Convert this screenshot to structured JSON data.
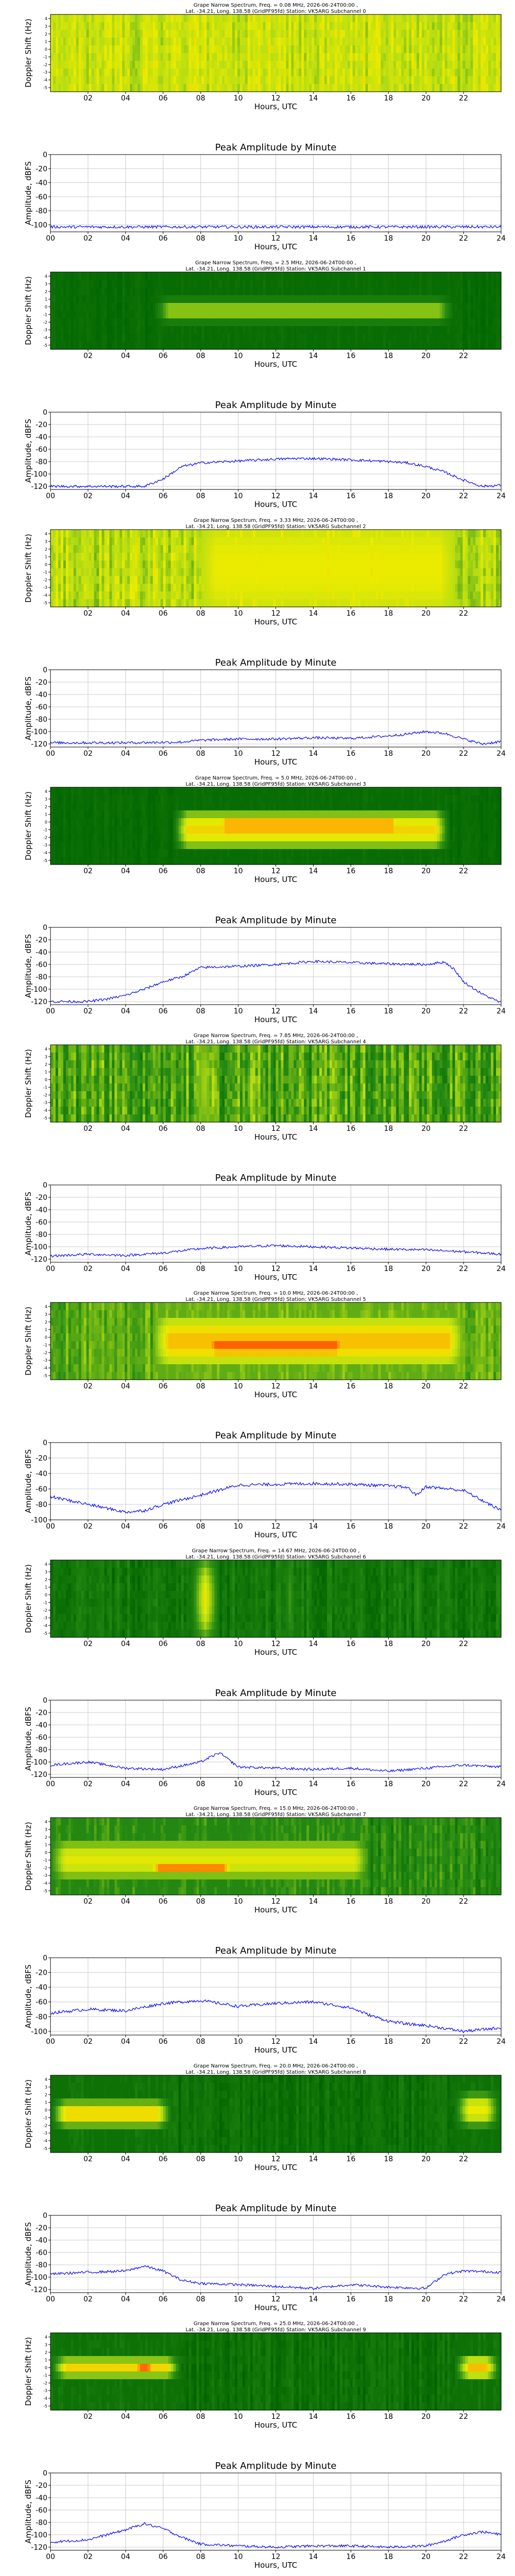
{
  "figure": {
    "spectrogram_ylabel": "Doppler Shift (Hz)",
    "amplitude_ylabel": "Amplitude, dBFS",
    "xlabel": "Hours, UTC",
    "amplitude_title": "Peak Amplitude by Minute",
    "spectrogram_xticks": [
      "02",
      "04",
      "06",
      "08",
      "10",
      "12",
      "14",
      "16",
      "18",
      "20",
      "22"
    ],
    "amplitude_xticks": [
      "00",
      "02",
      "04",
      "06",
      "08",
      "10",
      "12",
      "14",
      "16",
      "18",
      "20",
      "22",
      "24"
    ],
    "doppler_ticks": [
      "4",
      "3",
      "2",
      "1",
      "0",
      "-1",
      "-2",
      "-3",
      "-4",
      "-5"
    ],
    "colors": {
      "amplitude_line": "#0000ff",
      "low": "#006400",
      "mid": "#c8e600",
      "high": "#ff4000"
    }
  },
  "panels": [
    {
      "title_line1": "Grape Narrow Spectrum, Freq. = 0.08 MHz, 2026-06-24T00:00 ,",
      "title_line2": "Lat. -34.21, Long. 138.58 (GridPF95fd) Station: VK5ARG Subchannel 0",
      "amp_yticks": [
        "0",
        "-20",
        "-40",
        "-60",
        "-80",
        "-100"
      ],
      "spectrogram": {
        "base": 0.55,
        "noise": 0.18,
        "blobs": []
      },
      "chart_data": {
        "type": "line",
        "x_hours": [
          0,
          24
        ],
        "ylim": [
          -110,
          0
        ],
        "x": [
          0,
          4,
          8,
          12,
          16,
          20,
          24
        ],
        "y": [
          -103,
          -103,
          -103,
          -103,
          -103,
          -103,
          -103
        ]
      }
    },
    {
      "title_line1": "Grape Narrow Spectrum, Freq. = 2.5 MHz, 2026-06-24T00:00 ,",
      "title_line2": "Lat. -34.21, Long. 138.58 (GridPF95fd) Station: VK5ARG Subchannel 1",
      "amp_yticks": [
        "0",
        "-20",
        "-40",
        "-60",
        "-80",
        "-100",
        "-120"
      ],
      "spectrogram": {
        "base": 0.05,
        "noise": 0.06,
        "blobs": [
          {
            "x0": 5.5,
            "x1": 21.5,
            "y": 0.5,
            "h": 0.35,
            "v": 0.45
          },
          {
            "x0": 9.0,
            "x1": 17.5,
            "y": 0.5,
            "h": 0.1,
            "v": 0.85
          }
        ]
      },
      "chart_data": {
        "type": "line",
        "x_hours": [
          0,
          24
        ],
        "ylim": [
          -125,
          0
        ],
        "x": [
          0,
          5,
          6,
          7,
          8,
          10,
          12,
          13,
          14,
          16,
          18,
          19,
          20,
          21,
          22,
          23,
          24
        ],
        "y": [
          -120,
          -120,
          -108,
          -88,
          -82,
          -79,
          -76,
          -75,
          -75,
          -77,
          -80,
          -82,
          -88,
          -97,
          -110,
          -120,
          -118
        ]
      }
    },
    {
      "title_line1": "Grape Narrow Spectrum, Freq. = 3.33 MHz, 2026-06-24T00:00 ,",
      "title_line2": "Lat. -34.21, Long. 138.58 (GridPF95fd) Station: VK5ARG Subchannel 2",
      "amp_yticks": [
        "0",
        "-20",
        "-40",
        "-60",
        "-80",
        "-100",
        "-120"
      ],
      "spectrogram": {
        "base": 0.52,
        "noise": 0.2,
        "blobs": [
          {
            "x0": 8.0,
            "x1": 21.5,
            "y": 0.5,
            "h": 1.2,
            "v": 0.65
          },
          {
            "x0": 20.4,
            "x1": 21.2,
            "y": 0.5,
            "h": 1.2,
            "v": 0.8
          }
        ]
      },
      "chart_data": {
        "type": "line",
        "x_hours": [
          0,
          24
        ],
        "ylim": [
          -125,
          0
        ],
        "x": [
          0,
          4,
          7,
          8,
          10,
          12,
          14,
          16,
          18,
          19,
          20,
          21,
          22,
          23,
          24
        ],
        "y": [
          -118,
          -118,
          -117,
          -114,
          -112,
          -112,
          -110,
          -111,
          -107,
          -104,
          -100,
          -103,
          -112,
          -120,
          -116
        ]
      }
    },
    {
      "title_line1": "Grape Narrow Spectrum, Freq. = 5.0 MHz, 2026-06-24T00:00 ,",
      "title_line2": "Lat. -34.21, Long. 138.58 (GridPF95fd) Station: VK5ARG Subchannel 3",
      "amp_yticks": [
        "0",
        "-20",
        "-40",
        "-60",
        "-80",
        "-100",
        "-120"
      ],
      "spectrogram": {
        "base": 0.05,
        "noise": 0.06,
        "blobs": [
          {
            "x0": 6.5,
            "x1": 21.3,
            "y": 0.55,
            "h": 0.6,
            "v": 0.7
          },
          {
            "x0": 8.5,
            "x1": 19.0,
            "y": 0.5,
            "h": 0.25,
            "v": 0.9
          }
        ]
      },
      "chart_data": {
        "type": "line",
        "x_hours": [
          0,
          24
        ],
        "ylim": [
          -125,
          0
        ],
        "x": [
          0,
          2,
          3,
          4,
          5,
          6,
          7,
          8,
          10,
          12,
          14,
          16,
          18,
          20,
          21,
          21.5,
          22,
          23,
          24
        ],
        "y": [
          -120,
          -120,
          -116,
          -110,
          -100,
          -88,
          -80,
          -65,
          -63,
          -60,
          -55,
          -57,
          -59,
          -60,
          -56,
          -68,
          -88,
          -108,
          -122
        ]
      }
    },
    {
      "title_line1": "Grape Narrow Spectrum, Freq. = 7.85 MHz, 2026-06-24T00:00 ,",
      "title_line2": "Lat. -34.21, Long. 138.58 (GridPF95fd) Station: VK5ARG Subchannel 4",
      "amp_yticks": [
        "0",
        "-20",
        "-40",
        "-60",
        "-80",
        "-100",
        "-120"
      ],
      "spectrogram": {
        "base": 0.32,
        "noise": 0.28,
        "blobs": [
          {
            "x0": 7.8,
            "x1": 8.6,
            "y": 0.5,
            "h": 1.2,
            "v": 0.65
          }
        ]
      },
      "chart_data": {
        "type": "line",
        "x_hours": [
          0,
          24
        ],
        "ylim": [
          -125,
          0
        ],
        "x": [
          0,
          2,
          4,
          6,
          8,
          10,
          12,
          14,
          16,
          18,
          20,
          22,
          24
        ],
        "y": [
          -115,
          -112,
          -114,
          -110,
          -103,
          -100,
          -98,
          -100,
          -102,
          -104,
          -105,
          -108,
          -112
        ]
      }
    },
    {
      "title_line1": "Grape Narrow Spectrum, Freq. = 10.0 MHz, 2026-06-24T00:00 ,",
      "title_line2": "Lat. -34.21, Long. 138.58 (GridPF95fd) Station: VK5ARG Subchannel 5",
      "amp_yticks": [
        "0",
        "-20",
        "-40",
        "-60",
        "-80",
        "-100"
      ],
      "spectrogram": {
        "base": 0.35,
        "noise": 0.15,
        "blobs": [
          {
            "x0": 5.5,
            "x1": 22.0,
            "y": 0.5,
            "h": 0.7,
            "v": 0.75
          },
          {
            "x0": 8.0,
            "x1": 16.0,
            "y": 0.55,
            "h": 0.35,
            "v": 0.92
          }
        ]
      },
      "chart_data": {
        "type": "line",
        "x_hours": [
          0,
          24
        ],
        "ylim": [
          -100,
          0
        ],
        "x": [
          0,
          2,
          4,
          5,
          6,
          8,
          10,
          12,
          14,
          16,
          18,
          19,
          19.5,
          20,
          22,
          23,
          24
        ],
        "y": [
          -70,
          -80,
          -90,
          -88,
          -80,
          -68,
          -55,
          -54,
          -53,
          -54,
          -56,
          -58,
          -68,
          -57,
          -62,
          -75,
          -88
        ]
      }
    },
    {
      "title_line1": "Grape Narrow Spectrum, Freq. = 14.67 MHz, 2026-06-24T00:00 ,",
      "title_line2": "Lat. -34.21, Long. 138.58 (GridPF95fd) Station: VK5ARG Subchannel 6",
      "amp_yticks": [
        "0",
        "-20",
        "-40",
        "-60",
        "-80",
        "-100",
        "-120"
      ],
      "spectrogram": {
        "base": 0.12,
        "noise": 0.16,
        "blobs": [
          {
            "x0": 7.5,
            "x1": 9.0,
            "y": 0.5,
            "h": 1.2,
            "v": 0.7
          },
          {
            "x0": 12.5,
            "x1": 13.0,
            "y": 0.5,
            "h": 1.2,
            "v": 0.65
          },
          {
            "x0": 19.3,
            "x1": 19.8,
            "y": 0.5,
            "h": 1.2,
            "v": 0.6
          }
        ]
      },
      "chart_data": {
        "type": "line",
        "x_hours": [
          0,
          24
        ],
        "ylim": [
          -125,
          0
        ],
        "x": [
          0,
          2,
          4,
          6,
          8,
          9,
          10,
          12,
          14,
          16,
          18,
          20,
          22,
          24
        ],
        "y": [
          -105,
          -100,
          -110,
          -112,
          -100,
          -85,
          -108,
          -110,
          -112,
          -110,
          -115,
          -110,
          -105,
          -108
        ]
      }
    },
    {
      "title_line1": "Grape Narrow Spectrum, Freq. = 15.0 MHz, 2026-06-24T00:00 ,",
      "title_line2": "Lat. -34.21, Long. 138.58 (GridPF95fd) Station: VK5ARG Subchannel 7",
      "amp_yticks": [
        "0",
        "-20",
        "-40",
        "-60",
        "-80",
        "-100"
      ],
      "spectrogram": {
        "base": 0.22,
        "noise": 0.18,
        "blobs": [
          {
            "x0": 0.0,
            "x1": 17.0,
            "y": 0.55,
            "h": 0.55,
            "v": 0.62
          },
          {
            "x0": 5.0,
            "x1": 10.0,
            "y": 0.65,
            "h": 0.2,
            "v": 0.85
          }
        ]
      },
      "chart_data": {
        "type": "line",
        "x_hours": [
          0,
          24
        ],
        "ylim": [
          -105,
          0
        ],
        "x": [
          0,
          2,
          4,
          6,
          8,
          10,
          12,
          14,
          16,
          17,
          18,
          19,
          20,
          22,
          24
        ],
        "y": [
          -75,
          -70,
          -72,
          -62,
          -58,
          -66,
          -62,
          -60,
          -68,
          -78,
          -86,
          -90,
          -92,
          -100,
          -95
        ]
      }
    },
    {
      "title_line1": "Grape Narrow Spectrum, Freq. = 20.0 MHz, 2026-06-24T00:00 ,",
      "title_line2": "Lat. -34.21, Long. 138.58 (GridPF95fd) Station: VK5ARG Subchannel 8",
      "amp_yticks": [
        "0",
        "-20",
        "-40",
        "-60",
        "-80",
        "-100",
        "-120"
      ],
      "spectrogram": {
        "base": 0.08,
        "noise": 0.12,
        "blobs": [
          {
            "x0": 0.0,
            "x1": 6.5,
            "y": 0.5,
            "h": 0.4,
            "v": 0.72
          },
          {
            "x0": 3.0,
            "x1": 5.5,
            "y": 0.5,
            "h": 0.15,
            "v": 0.88
          },
          {
            "x0": 21.5,
            "x1": 24.0,
            "y": 0.45,
            "h": 0.5,
            "v": 0.65
          }
        ]
      },
      "chart_data": {
        "type": "line",
        "x_hours": [
          0,
          24
        ],
        "ylim": [
          -125,
          0
        ],
        "x": [
          0,
          2,
          4,
          5,
          6,
          7,
          8,
          10,
          12,
          14,
          16,
          18,
          20,
          21,
          22,
          24
        ],
        "y": [
          -95,
          -92,
          -90,
          -82,
          -90,
          -105,
          -110,
          -112,
          -115,
          -118,
          -112,
          -116,
          -118,
          -95,
          -90,
          -92
        ]
      }
    },
    {
      "title_line1": "Grape Narrow Spectrum, Freq. = 25.0 MHz, 2026-06-24T00:00 ,",
      "title_line2": "Lat. -34.21, Long. 138.58 (GridPF95fd) Station: VK5ARG Subchannel 9",
      "amp_yticks": [
        "0",
        "-20",
        "-40",
        "-60",
        "-80",
        "-100",
        "-120"
      ],
      "spectrogram": {
        "base": 0.08,
        "noise": 0.12,
        "blobs": [
          {
            "x0": 0.0,
            "x1": 7.0,
            "y": 0.45,
            "h": 0.3,
            "v": 0.7
          },
          {
            "x0": 4.0,
            "x1": 6.0,
            "y": 0.45,
            "h": 0.15,
            "v": 0.9
          },
          {
            "x0": 21.5,
            "x1": 24.0,
            "y": 0.45,
            "h": 0.35,
            "v": 0.75
          }
        ]
      },
      "chart_data": {
        "type": "line",
        "x_hours": [
          0,
          24
        ],
        "ylim": [
          -125,
          0
        ],
        "x": [
          0,
          2,
          4,
          5,
          6,
          7,
          8,
          10,
          12,
          14,
          16,
          18,
          20,
          21,
          22,
          23,
          24
        ],
        "y": [
          -112,
          -108,
          -92,
          -82,
          -90,
          -104,
          -115,
          -118,
          -120,
          -118,
          -118,
          -120,
          -118,
          -110,
          -100,
          -95,
          -100
        ]
      }
    }
  ]
}
